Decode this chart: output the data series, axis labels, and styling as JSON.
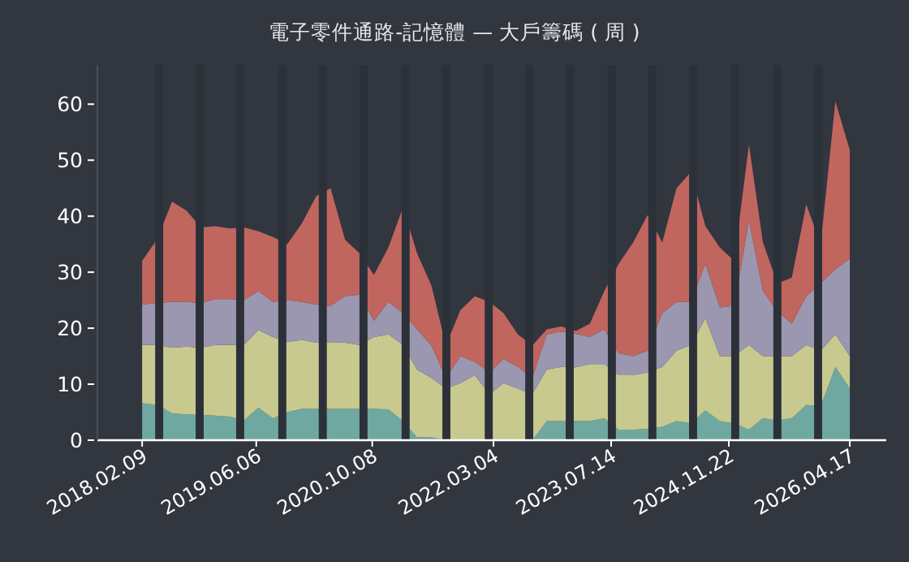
{
  "chart_data": {
    "type": "area",
    "stacked": true,
    "title": "電子零件通路-記憶體 — 大戶籌碼 ( 周 )",
    "x": [
      "2018-02-09",
      "2018-04-15",
      "2018-06-15",
      "2018-08-15",
      "2018-10-15",
      "2018-12-15",
      "2019-02-15",
      "2019-04-15",
      "2019-06-15",
      "2019-08-15",
      "2019-10-15",
      "2019-12-15",
      "2020-02-15",
      "2020-04-15",
      "2020-06-15",
      "2020-08-15",
      "2020-10-15",
      "2020-12-15",
      "2021-02-15",
      "2021-04-15",
      "2021-06-15",
      "2021-08-15",
      "2021-10-15",
      "2021-12-15",
      "2022-02-15",
      "2022-04-15",
      "2022-06-15",
      "2022-08-15",
      "2022-10-15",
      "2022-12-15",
      "2023-02-15",
      "2023-04-15",
      "2023-06-15",
      "2023-08-15",
      "2023-10-15",
      "2023-12-15",
      "2024-02-15",
      "2024-04-15",
      "2024-06-15",
      "2024-08-15",
      "2024-10-15",
      "2024-12-15",
      "2025-02-15",
      "2025-04-15",
      "2025-06-15",
      "2025-08-15",
      "2025-10-15",
      "2025-12-15",
      "2026-02-15",
      "2026-04-17"
    ],
    "series": [
      {
        "color": "#6fa8a0",
        "values": [
          6.6,
          6.3,
          4.8,
          4.6,
          4.5,
          4.4,
          4.2,
          3.5,
          5.8,
          3.9,
          5.0,
          5.6,
          5.6,
          5.6,
          5.6,
          5.6,
          5.6,
          5.5,
          3.4,
          0.5,
          0.5,
          0,
          0,
          0,
          0,
          0,
          0,
          0,
          3.4,
          3.4,
          3.4,
          3.4,
          3.9,
          1.9,
          1.9,
          2.0,
          2.4,
          3.4,
          3.0,
          5.3,
          3.4,
          3.0,
          1.9,
          3.9,
          3.5,
          3.9,
          6.3,
          6.0,
          13.1,
          9.2
        ]
      },
      {
        "color": "#c8c98f",
        "values": [
          10.4,
          10.7,
          11.7,
          12.1,
          12.0,
          12.6,
          12.8,
          13.5,
          13.9,
          14.5,
          12.5,
          12.3,
          11.8,
          11.9,
          11.8,
          11.4,
          12.8,
          13.4,
          13.6,
          12.1,
          10.6,
          9.2,
          10.2,
          11.6,
          8.2,
          10.2,
          9.2,
          8.2,
          9.2,
          9.7,
          9.6,
          10.2,
          9.7,
          9.7,
          9.7,
          10.1,
          10.7,
          12.6,
          14.0,
          16.5,
          11.6,
          12.0,
          15.1,
          11.1,
          11.5,
          11.1,
          10.7,
          10.0,
          5.8,
          5.8
        ]
      },
      {
        "color": "#9b97b0",
        "values": [
          7.2,
          7.5,
          8.2,
          8.0,
          8.0,
          8.2,
          8.2,
          8.0,
          6.9,
          6.3,
          7.5,
          6.8,
          6.8,
          6.5,
          8.3,
          9.0,
          2.9,
          5.8,
          5.7,
          7.2,
          5.8,
          1.9,
          4.8,
          2.4,
          3.9,
          4.3,
          3.9,
          2.9,
          6.3,
          6.3,
          6.0,
          4.8,
          6.2,
          3.9,
          3.4,
          3.9,
          9.6,
          8.7,
          7.7,
          9.7,
          8.7,
          9.0,
          22.2,
          11.6,
          8.0,
          5.8,
          8.7,
          12.0,
          11.6,
          17.4
        ]
      },
      {
        "color": "#c1655f",
        "values": [
          7.8,
          11.5,
          17.9,
          16.3,
          13.5,
          13.0,
          12.6,
          13.0,
          10.7,
          11.6,
          10.0,
          14.0,
          19.4,
          21.0,
          10.1,
          7.4,
          8.2,
          9.7,
          18.9,
          13.6,
          10.7,
          5.8,
          8.2,
          11.7,
          12.6,
          8.2,
          5.8,
          5.8,
          0.9,
          0.9,
          0.5,
          2.4,
          6.8,
          16.0,
          20.3,
          24.2,
          12.6,
          20.3,
          23.2,
          6.7,
          10.7,
          8.0,
          13.6,
          8.7,
          5.0,
          8.2,
          16.4,
          7.0,
          30.0,
          19.4
        ]
      }
    ],
    "xlim": [
      "2017-08-04",
      "2026-09-18"
    ],
    "xticks": [
      {
        "value": "2018-02-09",
        "label": "2018.02.09"
      },
      {
        "value": "2019-06-06",
        "label": "2019.06.06"
      },
      {
        "value": "2020-10-08",
        "label": "2020.10.08"
      },
      {
        "value": "2022-03-04",
        "label": "2022.03.04"
      },
      {
        "value": "2023-07-14",
        "label": "2023.07.14"
      },
      {
        "value": "2024-11-22",
        "label": "2024.11.22"
      },
      {
        "value": "2026-04-17",
        "label": "2026.04.17"
      }
    ],
    "ylim": [
      0,
      67
    ],
    "yticks": [
      0,
      10,
      20,
      30,
      40,
      50,
      60
    ],
    "grid": false,
    "bands": [
      {
        "axis": "x",
        "from": "2018-04-05",
        "to": "2018-05-09",
        "color": "#2c3139"
      },
      {
        "axis": "x",
        "from": "2018-09-23",
        "to": "2018-10-27",
        "color": "#2c3139"
      },
      {
        "axis": "x",
        "from": "2019-03-13",
        "to": "2019-04-16",
        "color": "#2c3139"
      },
      {
        "axis": "x",
        "from": "2019-09-07",
        "to": "2019-10-11",
        "color": "#2c3139"
      },
      {
        "axis": "x",
        "from": "2020-02-25",
        "to": "2020-03-30",
        "color": "#2c3139"
      },
      {
        "axis": "x",
        "from": "2020-08-15",
        "to": "2020-09-18",
        "color": "#2c3139"
      },
      {
        "axis": "x",
        "from": "2021-02-09",
        "to": "2021-03-15",
        "color": "#2c3139"
      },
      {
        "axis": "x",
        "from": "2021-07-31",
        "to": "2021-09-03",
        "color": "#2c3139"
      },
      {
        "axis": "x",
        "from": "2022-01-26",
        "to": "2022-03-01",
        "color": "#2c3139"
      },
      {
        "axis": "x",
        "from": "2022-07-16",
        "to": "2022-08-19",
        "color": "#2c3139"
      },
      {
        "axis": "x",
        "from": "2023-01-03",
        "to": "2023-02-06",
        "color": "#2c3139"
      },
      {
        "axis": "x",
        "from": "2023-06-30",
        "to": "2023-08-03",
        "color": "#2c3139"
      },
      {
        "axis": "x",
        "from": "2023-12-18",
        "to": "2024-01-21",
        "color": "#2c3139"
      },
      {
        "axis": "x",
        "from": "2024-06-07",
        "to": "2024-07-11",
        "color": "#2c3139"
      },
      {
        "axis": "x",
        "from": "2024-12-02",
        "to": "2025-01-05",
        "color": "#2c3139"
      },
      {
        "axis": "x",
        "from": "2025-05-29",
        "to": "2025-07-02",
        "color": "#2c3139"
      },
      {
        "axis": "x",
        "from": "2025-11-17",
        "to": "2025-12-21",
        "color": "#2c3139"
      }
    ]
  }
}
